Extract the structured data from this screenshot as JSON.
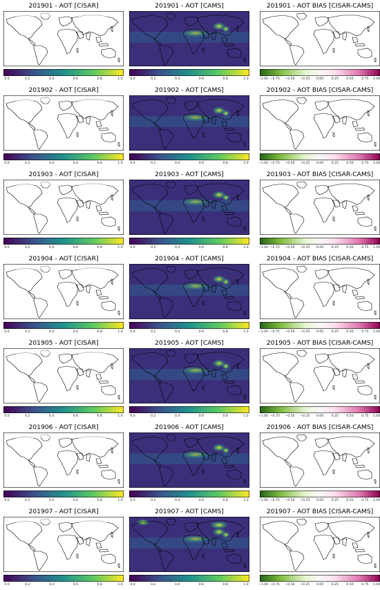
{
  "figure": {
    "columns": [
      {
        "key": "cisar",
        "suffix": "AOT [CISAR]",
        "colormap": "viridis",
        "range": [
          0.0,
          1.0
        ],
        "tick_labels": [
          "0.0",
          "0.2",
          "0.4",
          "0.6",
          "0.8",
          "1.0"
        ]
      },
      {
        "key": "cams",
        "suffix": "AOT [CAMS]",
        "colormap": "viridis",
        "range": [
          0.0,
          1.0
        ],
        "tick_labels": [
          "0.0",
          "0.2",
          "0.4",
          "0.6",
          "0.8",
          "1.0"
        ]
      },
      {
        "key": "bias",
        "suffix": "AOT BIAS [CISAR-CAMS]",
        "colormap": "PiYG (green negative, magenta positive)",
        "range": [
          -1.0,
          1.0
        ],
        "tick_labels": [
          "−1.00",
          "−0.75",
          "−0.50",
          "−0.25",
          "0.00",
          "0.25",
          "0.50",
          "0.75",
          "1.00"
        ]
      }
    ],
    "rows": [
      {
        "month": "201901",
        "titles": [
          "201901 - AOT [CISAR]",
          "201901 - AOT [CAMS]",
          "201901 - AOT BIAS [CISAR-CAMS]"
        ]
      },
      {
        "month": "201902",
        "titles": [
          "201902 - AOT [CISAR]",
          "201902 - AOT [CAMS]",
          "201902 - AOT BIAS [CISAR-CAMS]"
        ]
      },
      {
        "month": "201903",
        "titles": [
          "201903 - AOT [CISAR]",
          "201903 - AOT [CAMS]",
          "201903 - AOT BIAS [CISAR-CAMS]"
        ]
      },
      {
        "month": "201904",
        "titles": [
          "201904 - AOT [CISAR]",
          "201904 - AOT [CAMS]",
          "201904 - AOT BIAS [CISAR-CAMS]"
        ]
      },
      {
        "month": "201905",
        "titles": [
          "201905 - AOT [CISAR]",
          "201905 - AOT [CAMS]",
          "201905 - AOT BIAS [CISAR-CAMS]"
        ]
      },
      {
        "month": "201906",
        "titles": [
          "201906 - AOT [CISAR]",
          "201906 - AOT [CAMS]",
          "201906 - AOT BIAS [CISAR-CAMS]"
        ]
      },
      {
        "month": "201907",
        "titles": [
          "201907 - AOT [CISAR]",
          "201907 - AOT [CAMS]",
          "201907 - AOT BIAS [CISAR-CAMS]"
        ]
      }
    ]
  },
  "colors": {
    "viridis": [
      "#440154",
      "#3b528b",
      "#21918c",
      "#5ec962",
      "#fde725"
    ],
    "piyg": [
      "#276419",
      "#7fbc41",
      "#e6f5d0",
      "#f7f7f7",
      "#fde0ef",
      "#de77ae",
      "#8e0152"
    ],
    "land_outline": "#000000"
  }
}
